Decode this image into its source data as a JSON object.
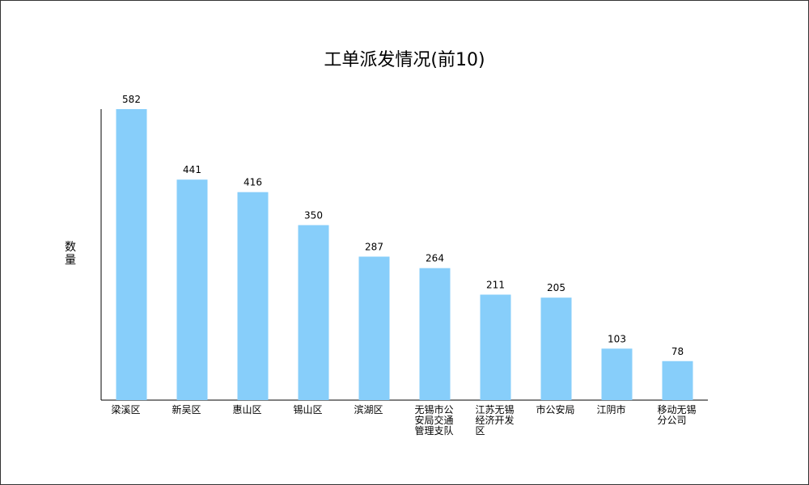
{
  "chart_data": {
    "type": "bar",
    "title": "工单派发情况(前10)",
    "y_label": "数量",
    "categories": [
      "梁溪区",
      "新吴区",
      "惠山区",
      "锡山区",
      "滨湖区",
      "无锡市公安局交通管理支队",
      "江苏无锡经济开发区",
      "市公安局",
      "江阴市",
      "移动无锡分公司"
    ],
    "values": [
      582,
      441,
      416,
      350,
      287,
      264,
      211,
      205,
      103,
      78
    ],
    "color": "#87cefa"
  }
}
